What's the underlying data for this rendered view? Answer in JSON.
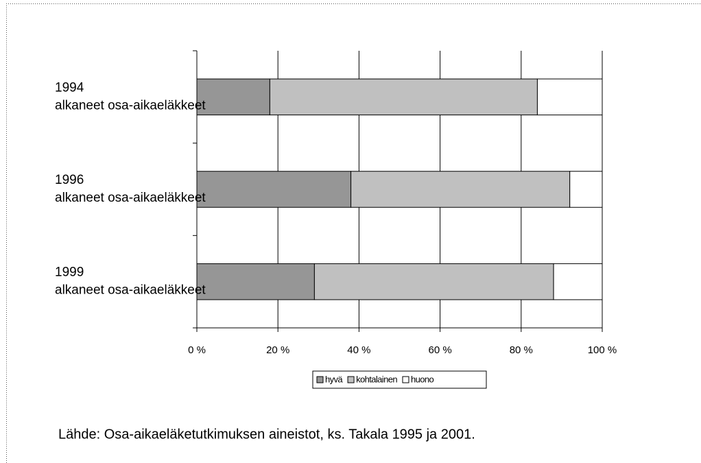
{
  "chart_data": {
    "type": "stacked_barh",
    "categories": [
      "1994 alkaneet osa-aikaeläkkeet",
      "1996 alkaneet osa-aikaeläkkeet",
      "1999 alkaneet osa-aikaeläkkeet"
    ],
    "series": [
      {
        "name": "hyvä",
        "color": "#969696",
        "values": [
          18,
          38,
          29
        ]
      },
      {
        "name": "kohtalainen",
        "color": "#c0c0c0",
        "values": [
          66,
          54,
          59
        ]
      },
      {
        "name": "huono",
        "color": "#ffffff",
        "values": [
          16,
          8,
          12
        ]
      }
    ],
    "xlim": [
      0,
      100
    ],
    "xticks": [
      {
        "value": 0,
        "label": "0 %"
      },
      {
        "value": 20,
        "label": "20 %"
      },
      {
        "value": 40,
        "label": "40 %"
      },
      {
        "value": 60,
        "label": "60 %"
      },
      {
        "value": 80,
        "label": "80 %"
      },
      {
        "value": 100,
        "label": "100 %"
      }
    ],
    "grid": true,
    "legend": "bottom",
    "note": "Lähde: Osa-aikaeläketutkimuksen aineistot, ks. Takala 1995 ja 2001."
  }
}
